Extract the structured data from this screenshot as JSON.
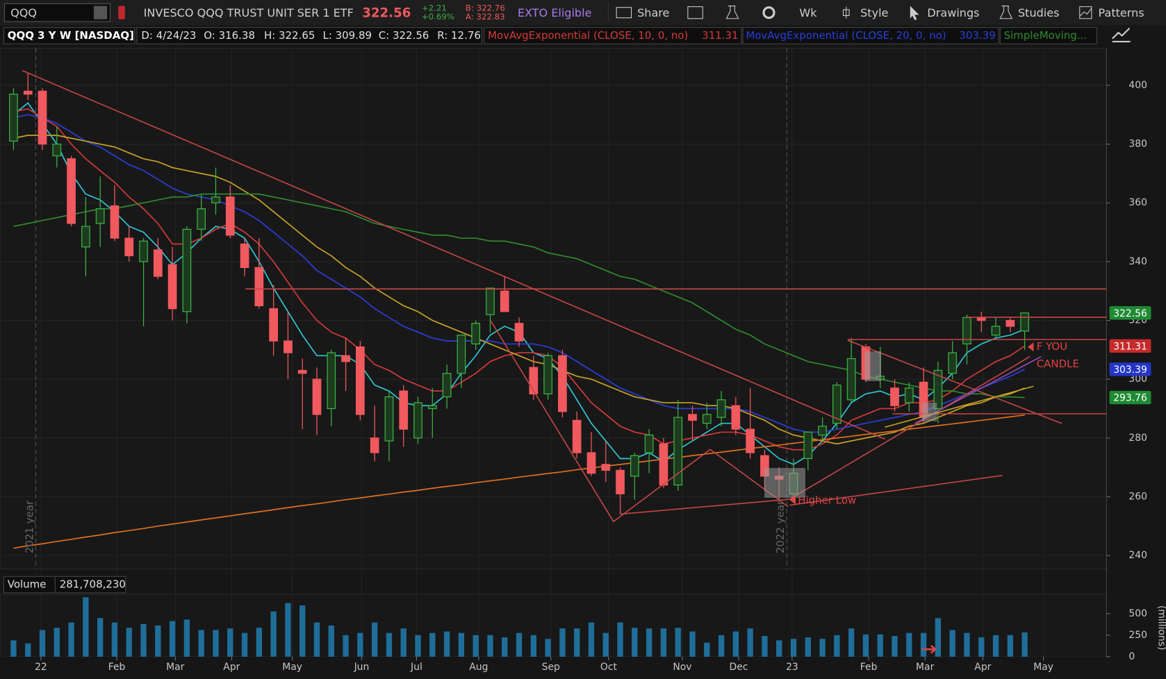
{
  "toolbar": {
    "symbol": "QQQ",
    "description": "INVESCO QQQ TRUST UNIT SER 1 ETF",
    "last": "322.56",
    "change": "+2.21",
    "change_pct": "+0.69%",
    "bid": "B: 322.76",
    "ask": "A: 322.83",
    "exto": "EXTO Eligible",
    "share": "Share",
    "period": "Wk",
    "style": "Style",
    "drawings": "Drawings",
    "studies": "Studies",
    "patterns": "Patterns"
  },
  "info_bar": {
    "title": "QQQ 3 Y W [NASDAQ]",
    "date": "D: 4/24/23",
    "open": "O: 316.38",
    "high": "H: 322.65",
    "low": "L: 309.89",
    "close": "C: 322.56",
    "range": "R: 12.76",
    "ema10": "MovAvgExponential (CLOSE, 10, 0, no)",
    "ema10_value": "311.31",
    "ema20": "MovAvgExponential (CLOSE, 20, 0, no)",
    "ema20_value": "303.39",
    "sma": "SimpleMoving..."
  },
  "chart_data": {
    "type": "candlestick",
    "xlim": [
      -0.93,
      75.66
    ],
    "xticks": [
      {
        "value": 1.9,
        "label": "22"
      },
      {
        "value": 7.15,
        "label": "Feb"
      },
      {
        "value": 11.2,
        "label": "Mar"
      },
      {
        "value": 15.1,
        "label": "Apr"
      },
      {
        "value": 19.3,
        "label": "May"
      },
      {
        "value": 24.1,
        "label": "Jun"
      },
      {
        "value": 27.9,
        "label": "Jul"
      },
      {
        "value": 32.2,
        "label": "Aug"
      },
      {
        "value": 37.2,
        "label": "Sep"
      },
      {
        "value": 41.2,
        "label": "Oct"
      },
      {
        "value": 46.3,
        "label": "Nov"
      },
      {
        "value": 50.2,
        "label": "Dec"
      },
      {
        "value": 53.9,
        "label": "23"
      },
      {
        "value": 59.2,
        "label": "Feb"
      },
      {
        "value": 63.1,
        "label": "Mar"
      },
      {
        "value": 67.1,
        "label": "Apr"
      },
      {
        "value": 71.3,
        "label": "May"
      }
    ],
    "ylim": [
      235.4,
      412.6
    ],
    "yticks": [
      240,
      260,
      280,
      300,
      320,
      340,
      360,
      380,
      400
    ],
    "grid": true,
    "up_color": "#3cb043",
    "down_color": "#f0595e",
    "open": [
      381,
      398,
      398,
      376,
      375,
      345,
      353,
      359,
      348,
      340,
      344,
      339,
      323,
      351,
      360,
      362,
      346,
      338,
      324,
      313,
      303,
      300,
      290,
      308,
      311,
      280,
      279,
      296,
      280,
      290,
      294,
      302,
      312,
      322,
      330,
      319,
      304,
      295,
      308,
      286,
      275,
      271,
      269,
      267,
      275,
      278,
      264,
      288,
      285,
      287,
      291,
      283,
      274,
      267,
      261,
      273,
      281,
      285,
      293,
      311,
      300,
      297,
      292,
      299,
      290,
      302,
      312,
      321,
      315,
      320,
      316.38
    ],
    "high": [
      399,
      404,
      399,
      386,
      376,
      362,
      369,
      366,
      352,
      348,
      348,
      345,
      352,
      363,
      372,
      366,
      348,
      348,
      332,
      323,
      307,
      304,
      310,
      314,
      313,
      291,
      296,
      298,
      294,
      297,
      305,
      315,
      320,
      331,
      335,
      321,
      308,
      309,
      310,
      289,
      282,
      279,
      270,
      275,
      283,
      280,
      293,
      291,
      292,
      296,
      294,
      297,
      276,
      270,
      273,
      282,
      287,
      299,
      314,
      312,
      311,
      300,
      299,
      304,
      306,
      313,
      322,
      323,
      321,
      321,
      322.65
    ],
    "low": [
      378,
      395,
      378,
      372,
      352,
      335,
      345,
      347,
      340,
      318,
      334,
      320,
      319,
      347,
      356,
      348,
      335,
      324,
      308,
      300,
      283,
      281,
      284,
      296,
      286,
      272,
      272,
      277,
      278,
      280,
      290,
      297,
      310,
      316,
      323,
      311,
      293,
      293,
      287,
      273,
      267,
      265,
      254,
      259,
      268,
      263,
      262,
      279,
      283,
      284,
      281,
      273,
      262,
      259,
      259,
      269,
      279,
      283,
      292,
      299,
      297,
      289,
      289,
      285,
      285,
      300,
      305,
      316,
      314,
      316,
      309.89
    ],
    "close": [
      397,
      397,
      380,
      380,
      353,
      352,
      358,
      348,
      342,
      347,
      335,
      324,
      351,
      358,
      362,
      349,
      338,
      325,
      313,
      309,
      302,
      288,
      309,
      306,
      288,
      275,
      294,
      283,
      292,
      291,
      302,
      315,
      319,
      331,
      323,
      313,
      295,
      308,
      289,
      275,
      268,
      269,
      261,
      274,
      281,
      264,
      287,
      286,
      288,
      293,
      283,
      275,
      267,
      266,
      268,
      282,
      284,
      298,
      307,
      300,
      301,
      291,
      297,
      287,
      303,
      309,
      321,
      320,
      318,
      318,
      322.56
    ],
    "overlays": [
      {
        "color": "#2fc4d4",
        "values": [
          390,
          394,
          387,
          380,
          370,
          363,
          361,
          357,
          352,
          350,
          345,
          339,
          343,
          348,
          352,
          351,
          348,
          340,
          331,
          323,
          315,
          308,
          308,
          308,
          305,
          298,
          296,
          292,
          291,
          291,
          295,
          302,
          308,
          315,
          318,
          316,
          309,
          307,
          301,
          293,
          285,
          279,
          273,
          273,
          275,
          272,
          276,
          279,
          282,
          285,
          285,
          281,
          277,
          273,
          271,
          274,
          279,
          285,
          292,
          295,
          296,
          294,
          295,
          293,
          297,
          302,
          309,
          312,
          314,
          315,
          317
        ]
      },
      {
        "color": "#d33a3a",
        "values": [
          391,
          392,
          389,
          386,
          380,
          375,
          371,
          367,
          362,
          358,
          353,
          346,
          346,
          348,
          351,
          353,
          350,
          346,
          340,
          333,
          326,
          320,
          316,
          314,
          310,
          305,
          303,
          300,
          298,
          296,
          296,
          299,
          302,
          306,
          308,
          309,
          309,
          308,
          304,
          298,
          292,
          288,
          284,
          282,
          281,
          278,
          279,
          280,
          281,
          282,
          282,
          281,
          279,
          277,
          276,
          276,
          278,
          281,
          286,
          288,
          290,
          290,
          292,
          292,
          293,
          296,
          300,
          303,
          306,
          308,
          311.31
        ]
      },
      {
        "color": "#2a3fd8",
        "values": [
          389,
          390,
          389,
          387,
          384,
          381,
          379,
          376,
          373,
          371,
          368,
          365,
          363,
          362,
          361,
          359,
          357,
          354,
          350,
          346,
          342,
          337,
          334,
          331,
          328,
          324,
          321,
          318,
          316,
          314,
          313,
          313,
          313,
          313,
          312,
          312,
          312,
          311,
          309,
          306,
          303,
          300,
          297,
          295,
          293,
          291,
          290,
          290,
          290,
          290,
          290,
          289,
          287,
          285,
          283,
          282,
          282,
          283,
          284,
          285,
          286,
          287,
          288,
          289,
          291,
          293,
          295,
          297,
          299,
          301,
          303.39
        ]
      },
      {
        "color": "#c9a227",
        "values": [
          382,
          383,
          383,
          383,
          382,
          381,
          380,
          379,
          377,
          375,
          374,
          372,
          371,
          370,
          369,
          367,
          364,
          361,
          357,
          353,
          349,
          345,
          342,
          338,
          335,
          331,
          328,
          325,
          323,
          320,
          318,
          316,
          314,
          312,
          310,
          308,
          306,
          305,
          303,
          301,
          300,
          298,
          296,
          294,
          293,
          292,
          292,
          292,
          291,
          291,
          290,
          288,
          286,
          283,
          281,
          280,
          279,
          278,
          279,
          280,
          281,
          282,
          284,
          285,
          287,
          289,
          291,
          292,
          294,
          295,
          297
        ]
      },
      {
        "color": "#2f8a2f",
        "values": [
          352,
          353,
          354,
          355,
          356,
          357,
          358,
          358,
          359,
          360,
          361,
          362,
          362,
          363,
          363,
          363,
          363,
          363,
          362,
          361,
          360,
          359,
          358,
          357,
          355,
          353,
          352,
          351,
          350,
          349,
          349,
          348,
          348,
          347,
          347,
          346,
          345,
          343,
          342,
          341,
          339,
          337,
          335,
          334,
          332,
          330,
          328,
          326,
          323,
          320,
          317,
          315,
          312,
          310,
          308,
          306,
          305,
          304,
          303,
          301,
          300,
          299,
          298,
          297,
          296,
          296,
          295,
          295,
          294,
          294,
          293.76
        ]
      },
      {
        "color": "#e0701e",
        "values": [
          242.5,
          243.3,
          244.0,
          244.8,
          245.5,
          246.3,
          247.0,
          247.8,
          248.5,
          249.2,
          250.0,
          250.7,
          251.4,
          252.1,
          252.8,
          253.5,
          254.2,
          254.9,
          255.6,
          256.3,
          257.0,
          257.6,
          258.3,
          259.0,
          259.6,
          260.3,
          260.9,
          261.6,
          262.2,
          262.9,
          263.5,
          264.1,
          264.8,
          265.4,
          266.0,
          266.7,
          267.3,
          267.9,
          268.5,
          269.2,
          269.8,
          270.4,
          271.0,
          271.6,
          272.2,
          272.8,
          273.4,
          274.0,
          274.6,
          275.2,
          275.8,
          276.4,
          277.0,
          277.6,
          278.2,
          278.8,
          279.4,
          280.0,
          280.6,
          281.2,
          281.8,
          282.4,
          283.0,
          283.6,
          284.2,
          284.8,
          285.4,
          286.0,
          286.6,
          287.2,
          287.8
        ]
      }
    ],
    "price_labels": [
      {
        "value": 322.56,
        "color": "#1f8a34"
      },
      {
        "value": 311.31,
        "color": "#c42b2b"
      },
      {
        "value": 303.39,
        "color": "#2436c8"
      },
      {
        "value": 293.76,
        "color": "#1f8a34"
      }
    ],
    "annotations": [
      "Higher Low",
      "F YOU",
      "CANDLE"
    ],
    "year_labels": [
      "2021 year",
      "2022 year"
    ],
    "volume": {
      "title": "Volume",
      "last": "281,708,230",
      "ylabel": "(millions)",
      "color": "#1f6e9a",
      "ylim": [
        0,
        707
      ],
      "yticks": [
        0,
        250,
        500
      ],
      "values": [
        190,
        155,
        310,
        336,
        397,
        690,
        448,
        397,
        336,
        379,
        362,
        414,
        431,
        310,
        310,
        328,
        276,
        336,
        526,
        621,
        595,
        397,
        362,
        250,
        276,
        397,
        276,
        328,
        250,
        276,
        293,
        276,
        250,
        250,
        224,
        276,
        250,
        207,
        328,
        328,
        397,
        276,
        397,
        336,
        328,
        328,
        336,
        293,
        164,
        250,
        293,
        328,
        241,
        190,
        207,
        224,
        207,
        250,
        328,
        259,
        259,
        241,
        276,
        276,
        448,
        310,
        276,
        224,
        250,
        250,
        281.70823
      ]
    }
  }
}
